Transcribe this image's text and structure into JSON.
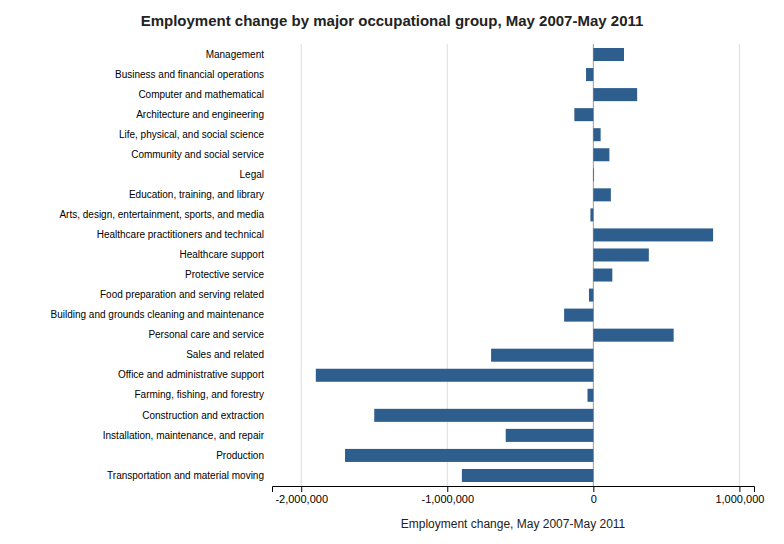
{
  "chart_data": {
    "type": "bar",
    "orientation": "horizontal",
    "title": "Employment change by major occupational group, May 2007-May 2011",
    "xlabel": "Employment change, May 2007-May 2011",
    "categories": [
      "Management",
      "Business and financial operations",
      "Computer and mathematical",
      "Architecture and engineering",
      "Life, physical, and social science",
      "Community and social service",
      "Legal",
      "Education, training, and library",
      "Arts, design, entertainment, sports, and media",
      "Healthcare practitioners and technical",
      "Healthcare support",
      "Protective service",
      "Food preparation and serving related",
      "Building and grounds cleaning and maintenance",
      "Personal care and service",
      "Sales and related",
      "Office and administrative support",
      "Farming, fishing, and forestry",
      "Construction and extraction",
      "Installation, maintenance, and repair",
      "Production",
      "Transportation and material moving"
    ],
    "values": [
      210000,
      -50000,
      300000,
      -130000,
      50000,
      110000,
      5000,
      120000,
      -20000,
      820000,
      380000,
      130000,
      -30000,
      -200000,
      550000,
      -700000,
      -1900000,
      -40000,
      -1500000,
      -600000,
      -1700000,
      -900000
    ],
    "color": "#2E5E8E",
    "xlim": [
      -2200000,
      1100000
    ],
    "xticks": [
      {
        "value": -2000000,
        "label": "-2,000,000"
      },
      {
        "value": -1000000,
        "label": "-1,000,000"
      },
      0,
      {
        "value": 1000000,
        "label": "1,000,000"
      }
    ],
    "grid": true
  }
}
